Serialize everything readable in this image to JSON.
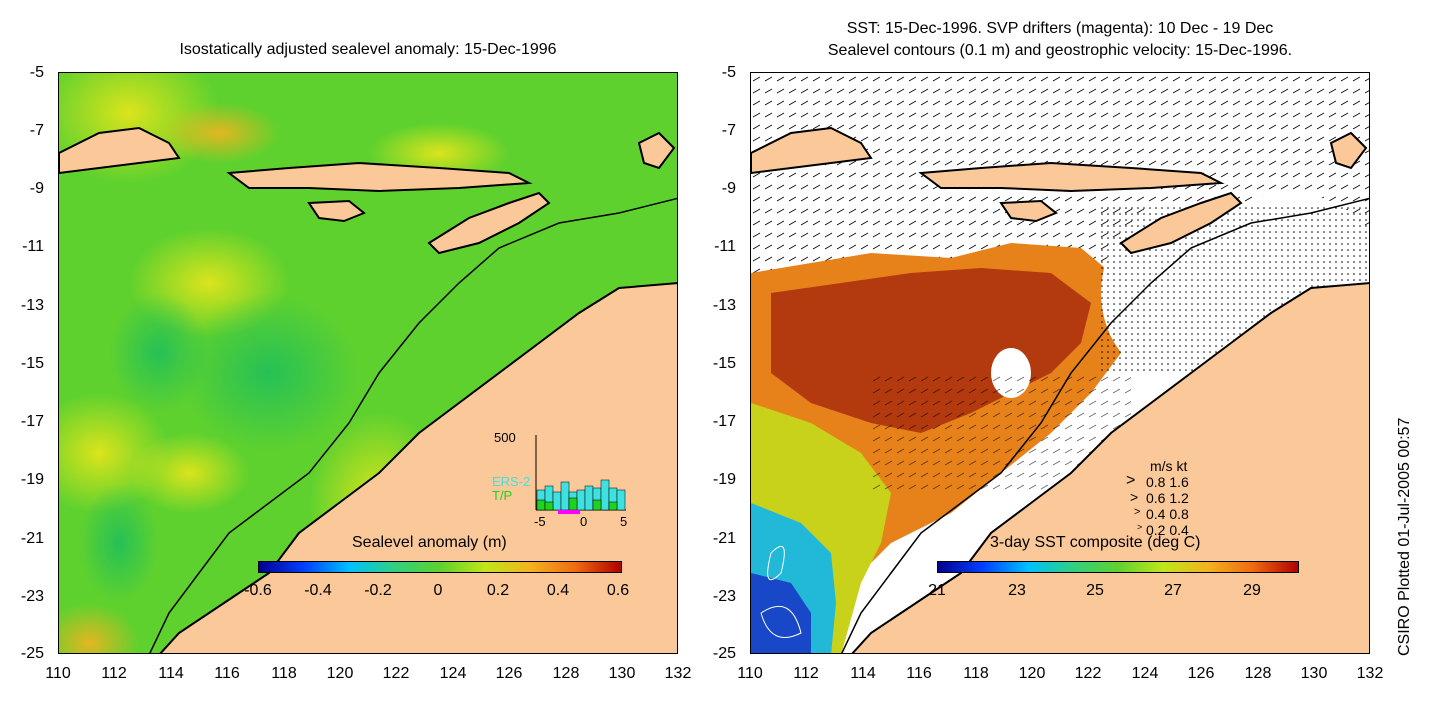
{
  "left_panel": {
    "title": "Isostatically adjusted sealevel anomaly: 15-Dec-1996",
    "colorbar_title": "Sealevel anomaly (m)",
    "colorbar_ticks": [
      "-0.6",
      "-0.4",
      "-0.2",
      "0",
      "0.2",
      "0.4",
      "0.6"
    ],
    "inset": {
      "ymax_label": "500",
      "series_labels": [
        "ERS-2",
        "T/P"
      ],
      "x_ticks": [
        "-5",
        "0",
        "5"
      ]
    }
  },
  "right_panel": {
    "title_line1": "SST: 15-Dec-1996. SVP drifters (magenta): 10 Dec - 19 Dec",
    "title_line2": "Sealevel contours (0.1 m) and geostrophic velocity: 15-Dec-1996.",
    "colorbar_title": "3-day SST composite (deg C)",
    "colorbar_ticks": [
      "21",
      "23",
      "25",
      "27",
      "29"
    ],
    "velocity_legend": {
      "header": "m/s  kt",
      "rows": [
        "0.8  1.6",
        "0.6  1.2",
        "0.4  0.8",
        "0.2  0.4"
      ]
    }
  },
  "axes": {
    "y_ticks": [
      "-5",
      "-7",
      "-9",
      "-11",
      "-13",
      "-15",
      "-17",
      "-19",
      "-21",
      "-23",
      "-25"
    ],
    "x_ticks": [
      "110",
      "112",
      "114",
      "116",
      "118",
      "120",
      "122",
      "124",
      "126",
      "128",
      "130",
      "132"
    ]
  },
  "side_label": "CSIRO Plotted 01-Jul-2005 00:57",
  "colors": {
    "land": "#fbc89a",
    "ocean_green": "#3ccd3a",
    "sea_yellow": "#b8e61f",
    "sst_red": "#b23a0e",
    "sst_orange": "#e7811a",
    "cloud": "#ffffff"
  }
}
